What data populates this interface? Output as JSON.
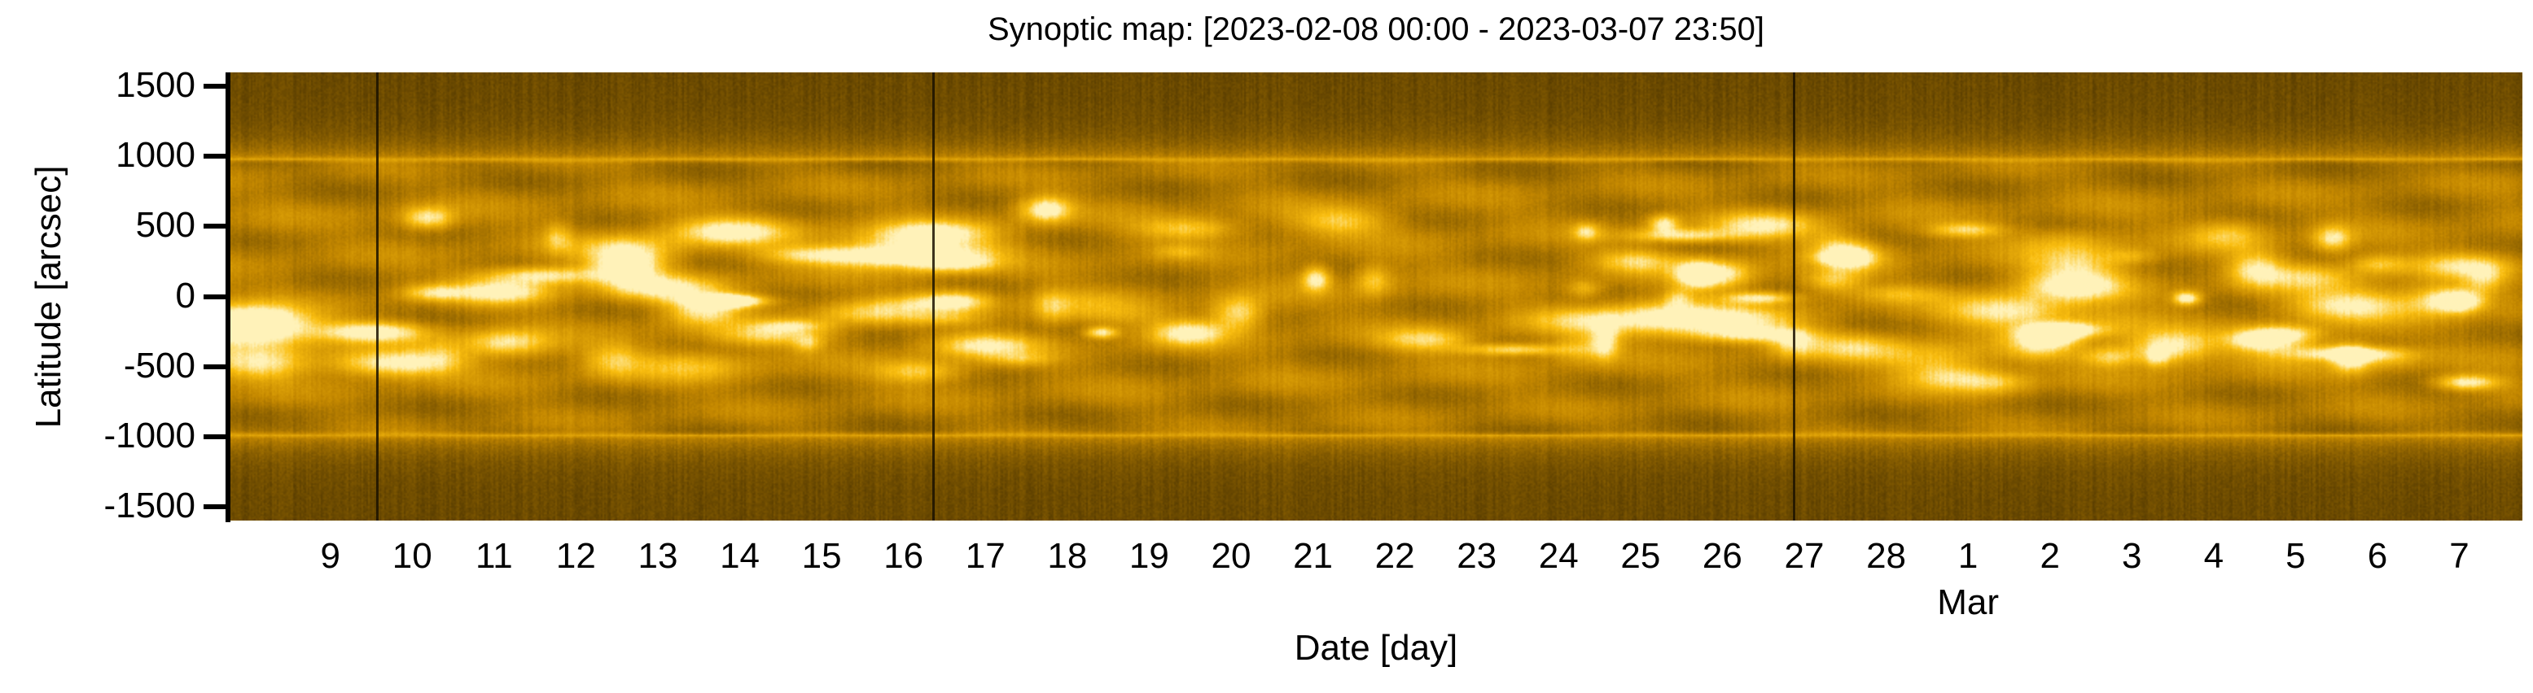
{
  "chart_data": {
    "type": "heatmap",
    "title": "Synoptic map: [2023-02-08 00:00 - 2023-03-07 23:50]",
    "xlabel": "Date [day]",
    "ylabel": "Latitude [arcsec]",
    "xlim_days_since_start": [
      0,
      28
    ],
    "ylim": [
      -1600,
      1600
    ],
    "yticks": [
      {
        "value": 1500,
        "label": "1500"
      },
      {
        "value": 1000,
        "label": "1000"
      },
      {
        "value": 500,
        "label": "500"
      },
      {
        "value": 0,
        "label": "0"
      },
      {
        "value": -500,
        "label": "-500"
      },
      {
        "value": -1000,
        "label": "-1000"
      },
      {
        "value": -1500,
        "label": "-1500"
      }
    ],
    "xticks": [
      {
        "day": 1.23,
        "label": "9"
      },
      {
        "day": 2.23,
        "label": "10"
      },
      {
        "day": 3.23,
        "label": "11"
      },
      {
        "day": 4.23,
        "label": "12"
      },
      {
        "day": 5.23,
        "label": "13"
      },
      {
        "day": 6.23,
        "label": "14"
      },
      {
        "day": 7.23,
        "label": "15"
      },
      {
        "day": 8.23,
        "label": "16"
      },
      {
        "day": 9.23,
        "label": "17"
      },
      {
        "day": 10.23,
        "label": "18"
      },
      {
        "day": 11.23,
        "label": "19"
      },
      {
        "day": 12.23,
        "label": "20"
      },
      {
        "day": 13.23,
        "label": "21"
      },
      {
        "day": 14.23,
        "label": "22"
      },
      {
        "day": 15.23,
        "label": "23"
      },
      {
        "day": 16.23,
        "label": "24"
      },
      {
        "day": 17.23,
        "label": "25"
      },
      {
        "day": 18.23,
        "label": "26"
      },
      {
        "day": 19.23,
        "label": "27"
      },
      {
        "day": 20.23,
        "label": "28"
      },
      {
        "day": 21.23,
        "label": "1"
      },
      {
        "day": 22.23,
        "label": "2"
      },
      {
        "day": 23.23,
        "label": "3"
      },
      {
        "day": 24.23,
        "label": "4"
      },
      {
        "day": 25.23,
        "label": "5"
      },
      {
        "day": 26.23,
        "label": "6"
      },
      {
        "day": 27.23,
        "label": "7"
      }
    ],
    "month_label": {
      "day": 21.23,
      "label": "Mar"
    },
    "solar_limb_latitude": 980,
    "data_gaps_days": [
      1.79,
      8.58,
      19.09
    ],
    "colormap": [
      "#3f2b00",
      "#5a3e00",
      "#bf8500",
      "#f5b800",
      "#fff0b4"
    ]
  }
}
